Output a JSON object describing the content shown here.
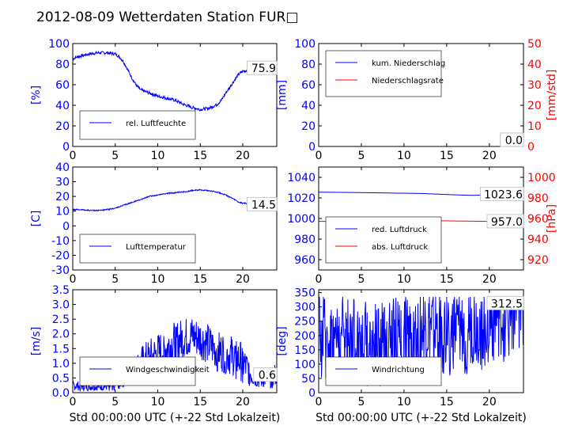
{
  "figure": {
    "title": "2012-08-09 Wetterdaten Station FUR□"
  },
  "colors": {
    "left_axis": "#0000ff",
    "right_axis": "#ff0000",
    "series_blue": "#0000ff",
    "series_red": "#ff0000",
    "frame": "#000000"
  },
  "chart_data": [
    {
      "id": "humidity",
      "type": "line",
      "title": "",
      "xlabel": "",
      "ylabel": "[%]",
      "xlim": [
        0,
        24
      ],
      "ylim": [
        0,
        100
      ],
      "xticks": [
        0,
        5,
        10,
        15,
        20
      ],
      "yticks": [
        0,
        20,
        40,
        60,
        80,
        100
      ],
      "legend": "lower-left",
      "grid": false,
      "annotation": "75.9",
      "series": [
        {
          "name": "rel. Luftfeuchte",
          "color": "#0000ff",
          "noise": 1.5,
          "x": [
            0,
            0.5,
            1,
            2,
            3,
            4,
            5,
            5.5,
            6,
            6.5,
            7,
            7.5,
            8,
            9,
            10,
            11,
            12,
            13,
            14,
            15,
            16,
            17,
            17.5,
            18,
            18.5,
            19,
            19.5,
            20,
            21,
            22,
            23,
            24
          ],
          "y": [
            85,
            87,
            88,
            90,
            91,
            91,
            90,
            87,
            82,
            74,
            66,
            59,
            55,
            52,
            49,
            47,
            45,
            41,
            38,
            36,
            37,
            41,
            45,
            52,
            58,
            64,
            70,
            73,
            75,
            77,
            78,
            76
          ]
        }
      ]
    },
    {
      "id": "precipitation",
      "type": "line",
      "title": "",
      "xlabel": "",
      "ylabel": "[mm]",
      "y2label": "[mm/std]",
      "xlim": [
        0,
        24
      ],
      "ylim": [
        0,
        100
      ],
      "y2lim": [
        0,
        50
      ],
      "xticks": [
        0,
        5,
        10,
        15,
        20
      ],
      "yticks": [
        0,
        20,
        40,
        60,
        80,
        100
      ],
      "y2ticks": [
        0,
        10,
        20,
        30,
        40,
        50
      ],
      "legend": "upper-left",
      "grid": false,
      "annotation": "0.0",
      "annotation2": "0.0",
      "series": [
        {
          "name": "kum. Niederschlag",
          "axis": "left",
          "color": "#0000ff",
          "x": [
            0,
            24
          ],
          "y": [
            0,
            0
          ]
        },
        {
          "name": "Niederschlagsrate",
          "axis": "right",
          "color": "#ff0000",
          "x": [
            0,
            24
          ],
          "y": [
            0,
            0
          ]
        }
      ]
    },
    {
      "id": "temperature",
      "type": "line",
      "title": "",
      "xlabel": "",
      "ylabel": "[C]",
      "xlim": [
        0,
        24
      ],
      "ylim": [
        -30,
        40
      ],
      "xticks": [
        0,
        5,
        10,
        15,
        20
      ],
      "yticks": [
        -30,
        -20,
        -10,
        0,
        10,
        20,
        30,
        40
      ],
      "legend": "lower-left",
      "grid": false,
      "annotation": "14.5",
      "series": [
        {
          "name": "Lufttemperatur",
          "color": "#0000ff",
          "noise": 0.4,
          "x": [
            0,
            1,
            2,
            3,
            4,
            5,
            6,
            7,
            8,
            9,
            10,
            11,
            12,
            13,
            14,
            15,
            16,
            17,
            18,
            19,
            19.5,
            20,
            21,
            22,
            23,
            24
          ],
          "y": [
            11,
            11,
            10.5,
            10.5,
            11,
            12,
            14,
            16,
            18,
            20,
            21,
            22,
            22.5,
            23,
            24,
            24.5,
            24,
            23,
            21,
            18,
            16,
            15.5,
            15,
            15,
            14.8,
            14.5
          ]
        }
      ]
    },
    {
      "id": "pressure",
      "type": "line",
      "title": "",
      "xlabel": "",
      "ylabel": "",
      "y2label": "[hPa]",
      "xlim": [
        0,
        24
      ],
      "ylim": [
        950,
        1050
      ],
      "y2lim": [
        910,
        1010
      ],
      "xticks": [
        0,
        5,
        10,
        15,
        20
      ],
      "yticks": [
        960,
        980,
        1000,
        1020,
        1040
      ],
      "y2ticks": [
        920,
        940,
        960,
        980,
        1000
      ],
      "legend": "lower-left",
      "grid": false,
      "annotation": "1023.6",
      "annotation2": "957.0",
      "series": [
        {
          "name": "red. Luftdruck",
          "axis": "left",
          "color": "#0000ff",
          "x": [
            0,
            4,
            8,
            12,
            16,
            18,
            20,
            22,
            24
          ],
          "y": [
            1025.5,
            1025.3,
            1024.8,
            1024.3,
            1023,
            1022.5,
            1023,
            1023.5,
            1023.6
          ]
        },
        {
          "name": "abs. Luftdruck",
          "axis": "right",
          "color": "#ff0000",
          "x": [
            0,
            4,
            8,
            12,
            16,
            20,
            24
          ],
          "y": [
            957.2,
            957.5,
            957.8,
            958,
            957.6,
            957.2,
            957.0
          ]
        }
      ]
    },
    {
      "id": "windspeed",
      "type": "line",
      "title": "",
      "xlabel": "Std 00:00:00 UTC (+-22 Std Lokalzeit)",
      "ylabel": "[m/s]",
      "xlim": [
        0,
        24
      ],
      "ylim": [
        0,
        3.5
      ],
      "xticks": [
        0,
        5,
        10,
        15,
        20
      ],
      "yticks": [
        0.0,
        0.5,
        1.0,
        1.5,
        2.0,
        2.5,
        3.0,
        3.5
      ],
      "legend": "lower-left",
      "grid": false,
      "annotation": "0.6",
      "series": [
        {
          "name": "Windgeschwindigkeit",
          "color": "#0000ff",
          "noise": 0.7,
          "clip": [
            0,
            3.2
          ],
          "x": [
            0,
            1,
            2,
            3,
            4,
            5,
            6,
            7,
            8,
            9,
            10,
            11,
            12,
            13,
            14,
            15,
            16,
            17,
            18,
            19,
            20,
            21,
            22,
            23,
            24
          ],
          "y": [
            0.25,
            0.2,
            0.2,
            0.2,
            0.2,
            0.25,
            0.5,
            0.7,
            0.9,
            1.1,
            1.3,
            1.5,
            1.7,
            1.8,
            1.9,
            1.8,
            1.6,
            1.4,
            1.3,
            1.2,
            1.0,
            0.6,
            0.4,
            0.5,
            0.6
          ]
        }
      ]
    },
    {
      "id": "winddirection",
      "type": "line",
      "title": "",
      "xlabel": "Std 00:00:00 UTC (+-22 Std Lokalzeit)",
      "ylabel": "[deg]",
      "xlim": [
        0,
        24
      ],
      "ylim": [
        0,
        360
      ],
      "xticks": [
        0,
        5,
        10,
        15,
        20
      ],
      "yticks": [
        0,
        50,
        100,
        150,
        200,
        250,
        300,
        350
      ],
      "legend": "lower-left",
      "grid": false,
      "annotation": "312.5",
      "series": [
        {
          "name": "Windrichtung",
          "color": "#0000ff",
          "noise": 150,
          "clip": [
            10,
            335
          ],
          "x": [
            0,
            2,
            4,
            5,
            6,
            8,
            10,
            12,
            14,
            16,
            18,
            20,
            22,
            24
          ],
          "y": [
            200,
            190,
            200,
            180,
            160,
            180,
            200,
            210,
            210,
            200,
            220,
            230,
            260,
            312
          ]
        }
      ]
    }
  ]
}
